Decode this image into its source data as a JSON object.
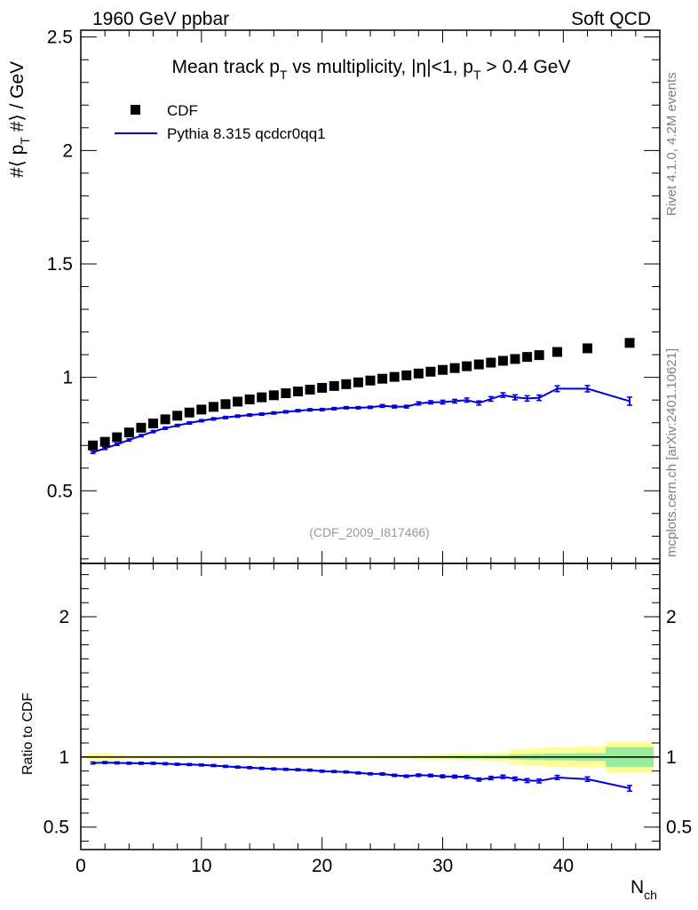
{
  "header": {
    "energy_label": "1960 GeV ppbar",
    "process_label": "Soft QCD",
    "side_text_top": "Rivet 4.1.0,  4.2M events",
    "side_text_bottom": "mcplots.cern.ch [arXiv:2401.10621]",
    "analysis_id": "(CDF_2009_I817466)"
  },
  "chart_data": [
    {
      "panel": "main",
      "type": "scatter",
      "title": "Mean track pT vs multiplicity, |η|<1, pT > 0.4 GeV",
      "title_parts": {
        "prefix": "Mean track p",
        "sub1": "T",
        "middle": " vs multiplicity, |η|<1, p",
        "sub2": "T",
        "suffix": " > 0.4 GeV"
      },
      "ylabel": "#⟨ pT #⟩ / GeV",
      "ylabel_parts": {
        "pre": "#⟨ p",
        "sub": "T",
        "post": " #⟩ / GeV"
      },
      "xlim": [
        0,
        48
      ],
      "ylim": [
        0.18,
        2.53
      ],
      "y_ticks": [
        0.5,
        1,
        1.5,
        2,
        2.5
      ],
      "y_tick_labels": [
        "0.5",
        "1",
        "1.5",
        "2",
        "2.5"
      ],
      "legend": {
        "position": "top-left",
        "data_label": "CDF",
        "mc_label": "Pythia 8.315 qcdcr0qq1"
      },
      "series": [
        {
          "name": "CDF",
          "style": "square-markers",
          "color": "#000000",
          "x": [
            1,
            2,
            3,
            4,
            5,
            6,
            7,
            8,
            9,
            10,
            11,
            12,
            13,
            14,
            15,
            16,
            17,
            18,
            19,
            20,
            21,
            22,
            23,
            24,
            25,
            26,
            27,
            28,
            29,
            30,
            31,
            32,
            33,
            34,
            35,
            36,
            37,
            38,
            39.5,
            42,
            45.5
          ],
          "y": [
            0.7,
            0.716,
            0.736,
            0.757,
            0.778,
            0.797,
            0.815,
            0.831,
            0.845,
            0.858,
            0.87,
            0.882,
            0.893,
            0.903,
            0.912,
            0.921,
            0.93,
            0.938,
            0.946,
            0.954,
            0.962,
            0.97,
            0.978,
            0.986,
            0.994,
            1.002,
            1.009,
            1.017,
            1.025,
            1.033,
            1.041,
            1.049,
            1.057,
            1.065,
            1.073,
            1.081,
            1.09,
            1.098,
            1.112,
            1.128,
            1.152
          ]
        },
        {
          "name": "Pythia 8.315 qcdcr0qq1",
          "style": "line-with-errorbars",
          "color": "#0000dd",
          "x": [
            1,
            2,
            3,
            4,
            5,
            6,
            7,
            8,
            9,
            10,
            11,
            12,
            13,
            14,
            15,
            16,
            17,
            18,
            19,
            20,
            21,
            22,
            23,
            24,
            25,
            26,
            27,
            28,
            29,
            30,
            31,
            32,
            33,
            34,
            35,
            36,
            37,
            38,
            39.5,
            42,
            45.5
          ],
          "y": [
            0.67,
            0.687,
            0.705,
            0.724,
            0.743,
            0.761,
            0.776,
            0.788,
            0.799,
            0.809,
            0.817,
            0.823,
            0.829,
            0.834,
            0.838,
            0.843,
            0.848,
            0.853,
            0.857,
            0.858,
            0.862,
            0.866,
            0.866,
            0.868,
            0.874,
            0.871,
            0.871,
            0.885,
            0.89,
            0.891,
            0.895,
            0.9,
            0.887,
            0.905,
            0.922,
            0.912,
            0.907,
            0.91,
            0.95,
            0.95,
            0.895
          ],
          "err": [
            0.005,
            0.005,
            0.005,
            0.005,
            0.005,
            0.005,
            0.005,
            0.005,
            0.005,
            0.005,
            0.005,
            0.005,
            0.005,
            0.005,
            0.005,
            0.005,
            0.005,
            0.005,
            0.005,
            0.005,
            0.005,
            0.005,
            0.005,
            0.005,
            0.006,
            0.006,
            0.006,
            0.007,
            0.007,
            0.008,
            0.008,
            0.009,
            0.009,
            0.01,
            0.01,
            0.011,
            0.012,
            0.012,
            0.013,
            0.014,
            0.018
          ]
        }
      ]
    },
    {
      "panel": "ratio",
      "type": "line",
      "ylabel": "Ratio to CDF",
      "xlabel": "Nch",
      "xlabel_parts": {
        "main": "N",
        "sub": "ch"
      },
      "xlim": [
        0,
        48
      ],
      "ylim": [
        0.34,
        2.38
      ],
      "y_ticks": [
        0.5,
        1,
        2
      ],
      "y_tick_labels": [
        "0.5",
        "1",
        "2"
      ],
      "x_ticks": [
        0,
        10,
        20,
        30,
        40
      ],
      "x_tick_labels": [
        "0",
        "10",
        "20",
        "30",
        "40"
      ],
      "reference_line": 1,
      "data_band_edges": [
        0.5,
        1.5,
        2.5,
        3.5,
        4.5,
        5.5,
        6.5,
        7.5,
        8.5,
        9.5,
        10.5,
        11.5,
        12.5,
        13.5,
        14.5,
        15.5,
        16.5,
        17.5,
        18.5,
        19.5,
        20.5,
        21.5,
        22.5,
        23.5,
        24.5,
        25.5,
        26.5,
        27.5,
        28.5,
        29.5,
        30.5,
        31.5,
        32.5,
        33.5,
        34.5,
        35.5,
        36.5,
        37.5,
        38.5,
        41,
        43.5,
        47.5
      ],
      "data_band_stat": [
        0.004,
        0.004,
        0.004,
        0.004,
        0.004,
        0.004,
        0.004,
        0.004,
        0.004,
        0.004,
        0.004,
        0.004,
        0.004,
        0.004,
        0.004,
        0.004,
        0.004,
        0.004,
        0.004,
        0.004,
        0.005,
        0.005,
        0.005,
        0.005,
        0.006,
        0.006,
        0.006,
        0.007,
        0.007,
        0.008,
        0.009,
        0.01,
        0.011,
        0.012,
        0.013,
        0.017,
        0.02,
        0.022,
        0.024,
        0.028,
        0.07
      ],
      "data_band_total": [
        0.03,
        0.03,
        0.02,
        0.012,
        0.01,
        0.01,
        0.01,
        0.01,
        0.01,
        0.01,
        0.01,
        0.01,
        0.01,
        0.01,
        0.01,
        0.01,
        0.01,
        0.01,
        0.01,
        0.01,
        0.01,
        0.01,
        0.01,
        0.01,
        0.012,
        0.014,
        0.016,
        0.018,
        0.02,
        0.022,
        0.024,
        0.026,
        0.028,
        0.03,
        0.032,
        0.055,
        0.06,
        0.065,
        0.07,
        0.075,
        0.11
      ],
      "band_colors": {
        "stat": "#99ee99",
        "total": "#ffff99"
      },
      "series": [
        {
          "name": "Pythia 8.315 qcdcr0qq1 / CDF",
          "color": "#0000dd",
          "x": [
            1,
            2,
            3,
            4,
            5,
            6,
            7,
            8,
            9,
            10,
            11,
            12,
            13,
            14,
            15,
            16,
            17,
            18,
            19,
            20,
            21,
            22,
            23,
            24,
            25,
            26,
            27,
            28,
            29,
            30,
            31,
            32,
            33,
            34,
            35,
            36,
            37,
            38,
            39.5,
            42,
            45.5
          ],
          "y": [
            0.957,
            0.96,
            0.958,
            0.956,
            0.955,
            0.955,
            0.952,
            0.948,
            0.946,
            0.943,
            0.939,
            0.933,
            0.928,
            0.924,
            0.919,
            0.915,
            0.912,
            0.909,
            0.906,
            0.899,
            0.896,
            0.893,
            0.886,
            0.88,
            0.879,
            0.869,
            0.863,
            0.87,
            0.868,
            0.862,
            0.86,
            0.858,
            0.839,
            0.85,
            0.859,
            0.844,
            0.832,
            0.829,
            0.854,
            0.842,
            0.777
          ],
          "err": [
            0.007,
            0.007,
            0.007,
            0.007,
            0.007,
            0.007,
            0.007,
            0.007,
            0.007,
            0.007,
            0.007,
            0.007,
            0.007,
            0.007,
            0.007,
            0.007,
            0.007,
            0.007,
            0.007,
            0.007,
            0.007,
            0.007,
            0.007,
            0.007,
            0.008,
            0.008,
            0.008,
            0.009,
            0.009,
            0.01,
            0.01,
            0.011,
            0.011,
            0.012,
            0.012,
            0.013,
            0.014,
            0.014,
            0.015,
            0.016,
            0.02
          ]
        }
      ]
    }
  ]
}
